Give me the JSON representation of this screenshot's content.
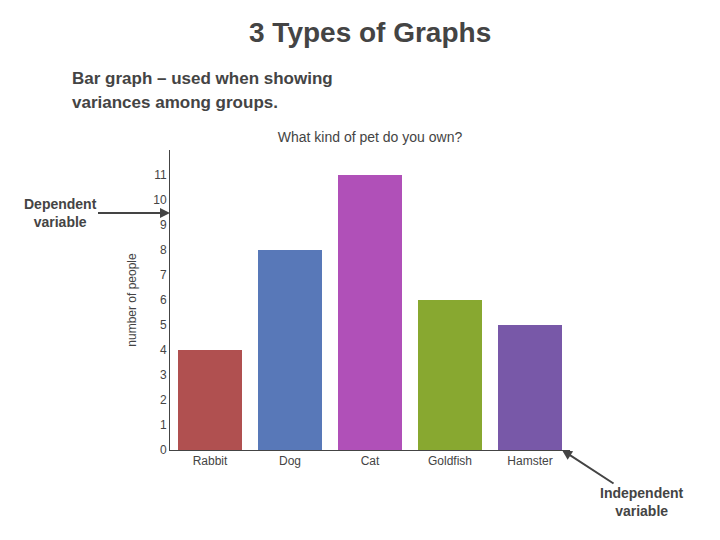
{
  "chart_data": {
    "type": "bar",
    "title": "What kind of pet do you own?",
    "categories": [
      "Rabbit",
      "Dog",
      "Cat",
      "Goldfish",
      "Hamster"
    ],
    "values": [
      4,
      8,
      11,
      6,
      5
    ],
    "colors": [
      "#b05050",
      "#5878b8",
      "#b050b8",
      "#88a830",
      "#7858a8"
    ],
    "ylabel": "number of people",
    "ylim": [
      0,
      12
    ],
    "yticks": [
      0,
      1,
      2,
      3,
      4,
      5,
      6,
      7,
      8,
      9,
      10,
      11
    ],
    "grid": false,
    "annotations": [
      "3 Types of Graphs",
      "Bar graph – used when showing",
      "variances among groups.",
      "Dependent\nvariable",
      "Independent\nvariable"
    ]
  }
}
